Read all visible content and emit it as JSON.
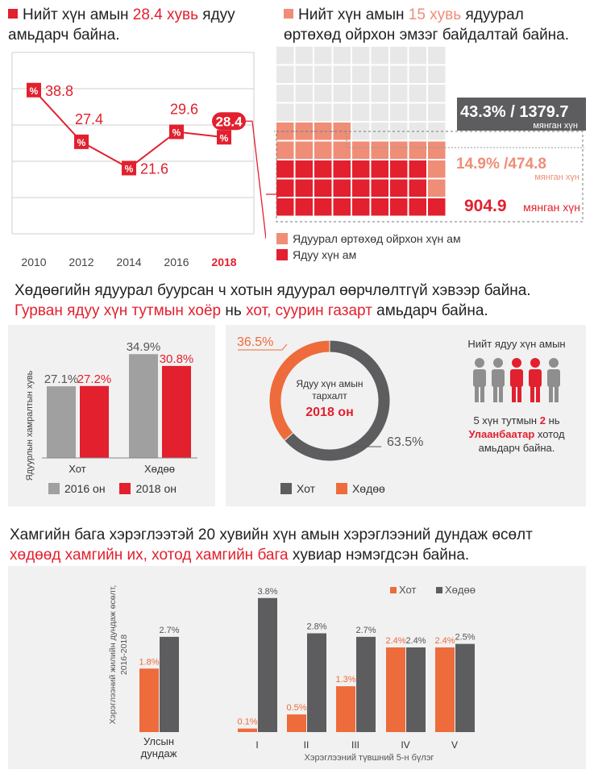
{
  "colors": {
    "red": "#e2202e",
    "salmon": "#ef8d77",
    "gray": "#9e9e9e",
    "dark": "#5d5d5f",
    "orange": "#ee6b3b",
    "light": "#f1f1f1"
  },
  "header1": {
    "pre": "Нийт хүн амын ",
    "hl": "28.4 хувь",
    "post": " ядуу",
    "line2": "амьдарч байна."
  },
  "header2": {
    "pre": "Нийт хүн амын ",
    "hl": "15 хувь",
    "post": " ядуурал",
    "line2": "өртөхөд ойрхон эмзэг байдалтай байна."
  },
  "chart_data": [
    {
      "type": "line",
      "title": "Нийт хүн амын 28.4 хувь ядуу амьдарч байна.",
      "categories": [
        "2010",
        "2012",
        "2014",
        "2016",
        "2018"
      ],
      "values": [
        38.8,
        27.4,
        21.6,
        29.6,
        28.4
      ],
      "labels": [
        "38.8",
        "27.4",
        "21.6",
        "29.6",
        "28.4"
      ],
      "marker": "%",
      "highlight": "2018"
    },
    {
      "type": "waffle",
      "title": "Нийт хүн амын 15 хувь ядуурал өртөхөд ойрхон эмзэг байдалтай байна.",
      "total": {
        "label": "43.3% / 1379.7",
        "unit": "мянган хүн"
      },
      "vulnerable": {
        "label": "14.9% /474.8",
        "unit": "мянган хүн",
        "cells": 24
      },
      "poor": {
        "label": "904.9",
        "unit": "мянган хүн",
        "cells": 46
      },
      "legend": [
        "Ядуурал өртөхөд ойрхон хүн ам",
        "Ядуу хүн ам"
      ]
    },
    {
      "type": "bar",
      "ylabel": "Ядуурлын хамралтын хувь",
      "categories": [
        "Хот",
        "Хөдөө"
      ],
      "series": [
        {
          "name": "2016 он",
          "values": [
            27.1,
            34.9
          ],
          "labels": [
            "27.1%",
            "34.9%"
          ]
        },
        {
          "name": "2018 он",
          "values": [
            27.2,
            30.8
          ],
          "labels": [
            "27.2%",
            "30.8%"
          ]
        }
      ],
      "ylim": [
        0,
        40
      ]
    },
    {
      "type": "pie",
      "center": {
        "line1": "Ядуу хүн амын",
        "line2": "тархалт",
        "year": "2018 он"
      },
      "slices": [
        {
          "name": "Хот",
          "value": 63.5,
          "label": "63.5%"
        },
        {
          "name": "Хөдөө",
          "value": 36.5,
          "label": "36.5%"
        }
      ]
    },
    {
      "type": "bar",
      "ylabel": "Хэрэглээний жилийн дундаж өсөлт, 2016-2018",
      "xlabel": "Хэрэглээний түвшний 5-н бүлэг",
      "categories": [
        "Улсын дундаж",
        "I",
        "II",
        "III",
        "IV",
        "V"
      ],
      "series": [
        {
          "name": "Хот",
          "values": [
            1.8,
            0.1,
            0.5,
            1.3,
            2.4,
            2.4
          ],
          "labels": [
            "1.8%",
            "0.1%",
            "0.5%",
            "1.3%",
            "2.4%",
            "2.4%"
          ]
        },
        {
          "name": "Хөдөө",
          "values": [
            2.7,
            3.8,
            2.8,
            2.7,
            2.4,
            2.5
          ],
          "labels": [
            "2.7%",
            "3.8%",
            "2.8%",
            "2.7%",
            "2.4%",
            "2.5%"
          ]
        }
      ],
      "ylim": [
        0,
        4
      ]
    }
  ],
  "section2": {
    "line1": "Хөдөөгийн ядуурал буурсан ч хотын ядуурал өөрчлөлтгүй хэвээр байна.",
    "l2a": "Гурван ядуу хүн тутмын хоёр",
    "l2b": " нь ",
    "l2c": "хот, суурин газарт",
    "l2d": " амьдарч байна."
  },
  "people": {
    "title": "Нийт ядуу хүн амын",
    "s1": "5 хүн тутмын ",
    "n": "2",
    "s2": " нь",
    "city": "Улаанбаатар",
    "s3": " хотод",
    "s4": "амьдарч байна."
  },
  "section3": {
    "line1": "Хамгийн бага хэрэглээтэй 20 хувийн хүн амын хэрэглээний дундаж өсөлт",
    "l2a": "хөдөөд хамгийн их, хотод хамгийн бага",
    "l2b": " хувиар нэмэгдсэн байна."
  },
  "age_label_udn1": "Улсын",
  "age_label_udn2": "дундаж"
}
